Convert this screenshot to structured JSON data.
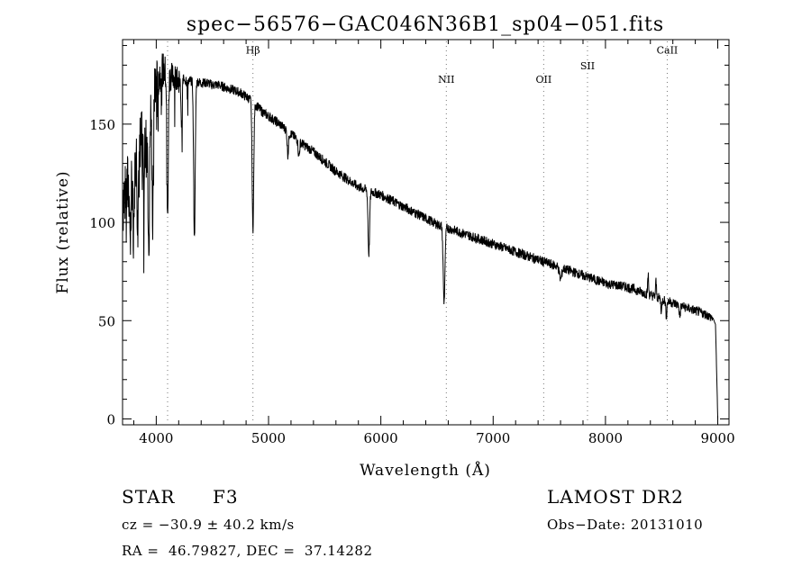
{
  "chart_data": {
    "type": "line",
    "title": "spec−56576−GAC046N36B1_sp04−051.fits",
    "xlabel": "Wavelength (Å)",
    "ylabel": "Flux (relative)",
    "xlim": [
      3700,
      9100
    ],
    "ylim": [
      -3,
      193
    ],
    "x_ticks": [
      4000,
      5000,
      6000,
      7000,
      8000,
      9000
    ],
    "x_tick_labels": [
      "4000",
      "5000",
      "6000",
      "7000",
      "8000",
      "9000"
    ],
    "y_ticks": [
      0,
      50,
      100,
      150
    ],
    "y_tick_labels": [
      "0",
      "50",
      "100",
      "150"
    ],
    "grid": false,
    "lines": [
      {
        "label": "Hβ",
        "x": 4861,
        "y_label": 186
      },
      {
        "label": "NII",
        "x": 6583,
        "y_label": 171
      },
      {
        "label": "OII",
        "x": 7450,
        "y_label": 171
      },
      {
        "label": "SII",
        "x": 7840,
        "y_label": 178
      },
      {
        "label": "CaII",
        "x": 8550,
        "y_label": 186
      },
      {
        "label": "",
        "x": 4101,
        "y_label": null
      }
    ],
    "spectrum_anchor": {
      "x": [
        3700,
        3750,
        3800,
        3850,
        3900,
        3950,
        4000,
        4050,
        4100,
        4150,
        4200,
        4250,
        4300,
        4350,
        4400,
        4450,
        4500,
        4550,
        4600,
        4650,
        4700,
        4750,
        4800,
        4850,
        4900,
        4950,
        5000,
        5100,
        5200,
        5300,
        5400,
        5500,
        5600,
        5700,
        5800,
        5900,
        6000,
        6100,
        6200,
        6300,
        6400,
        6500,
        6600,
        6700,
        6800,
        6900,
        7000,
        7100,
        7200,
        7300,
        7400,
        7500,
        7600,
        7700,
        7800,
        7900,
        8000,
        8100,
        8200,
        8300,
        8400,
        8500,
        8600,
        8700,
        8800,
        8900,
        8960,
        8980,
        9000
      ],
      "y": [
        112,
        118,
        128,
        140,
        150,
        158,
        172,
        178,
        175,
        174,
        173,
        173,
        172,
        172,
        171,
        171,
        170,
        170,
        169,
        168,
        167,
        166,
        164,
        162,
        159,
        156,
        154,
        150,
        145,
        140,
        136,
        131,
        126,
        122,
        118,
        116,
        114,
        111,
        108,
        105,
        102,
        99,
        97,
        95,
        93,
        91,
        89,
        87,
        85,
        83,
        81,
        79,
        77,
        75,
        73,
        71,
        69,
        68,
        67,
        65,
        63,
        61,
        59,
        57,
        55,
        53,
        51,
        48,
        0
      ]
    },
    "absorption_features": [
      {
        "x": 3934,
        "depth": 70,
        "width": 6
      },
      {
        "x": 3968,
        "depth": 65,
        "width": 6
      },
      {
        "x": 3890,
        "depth": 45,
        "width": 5
      },
      {
        "x": 3835,
        "depth": 40,
        "width": 5
      },
      {
        "x": 3798,
        "depth": 45,
        "width": 5
      },
      {
        "x": 3770,
        "depth": 30,
        "width": 5
      },
      {
        "x": 4101,
        "depth": 75,
        "width": 6
      },
      {
        "x": 4226,
        "depth": 25,
        "width": 5
      },
      {
        "x": 4340,
        "depth": 80,
        "width": 7
      },
      {
        "x": 4861,
        "depth": 65,
        "width": 7
      },
      {
        "x": 5172,
        "depth": 12,
        "width": 6
      },
      {
        "x": 5270,
        "depth": 8,
        "width": 6
      },
      {
        "x": 5893,
        "depth": 32,
        "width": 7
      },
      {
        "x": 6563,
        "depth": 38,
        "width": 8
      },
      {
        "x": 7600,
        "depth": 6,
        "width": 10
      },
      {
        "x": 8498,
        "depth": 6,
        "width": 5
      },
      {
        "x": 8542,
        "depth": 8,
        "width": 5
      },
      {
        "x": 8662,
        "depth": 6,
        "width": 5
      }
    ],
    "emission_spikes": [
      {
        "x": 8380,
        "height": 10
      },
      {
        "x": 8450,
        "height": 8
      }
    ],
    "noise": {
      "seed": 7,
      "amp_blue": 18,
      "amp_red": 2.5
    }
  },
  "info": {
    "object_class": "STAR",
    "subclass": "F3",
    "survey": "LAMOST DR2",
    "redshift": "cz = −30.9 ± 40.2 km/s",
    "obs_date": "Obs−Date: 20131010",
    "coords": "RA =  46.79827, DEC =  37.14282"
  },
  "style": {
    "axis_color": "#000000",
    "line_color": "#000000",
    "marker_color": "#777777",
    "background": "#ffffff"
  }
}
